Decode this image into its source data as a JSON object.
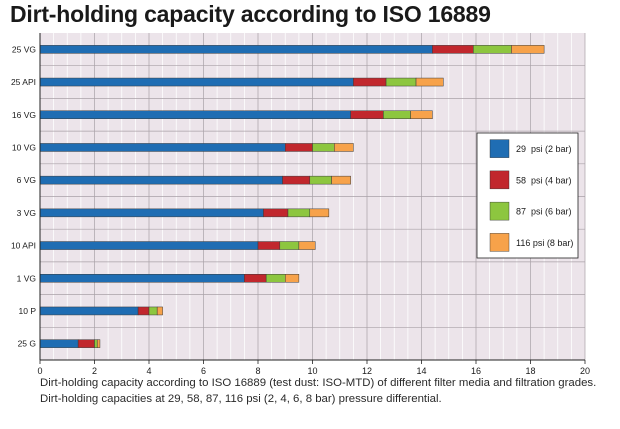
{
  "title": "Dirt-holding capacity according to ISO 16889",
  "caption_line1": "Dirt-holding capacity according to ISO 16889 (test dust: ISO-MTD) of different filter media and filtration grades.",
  "caption_line2": "Dirt-holding capacities at 29, 58, 87, 116 psi (2, 4, 6, 8 bar) pressure differential.",
  "chart_data": {
    "type": "bar",
    "orientation": "horizontal",
    "stacked": true,
    "title": "Dirt-holding capacity according to ISO 16889",
    "xlim": [
      0,
      20
    ],
    "xticks": [
      0,
      2,
      4,
      6,
      8,
      10,
      12,
      14,
      16,
      18,
      20
    ],
    "grid": true,
    "legend_position": "right",
    "categories": [
      "25 VG",
      "25 API",
      "16 VG",
      "10 VG",
      "6 VG",
      "3 VG",
      "10 API",
      "1 VG",
      "10 P",
      "25 G"
    ],
    "series": [
      {
        "name": "29  psi (2 bar)",
        "color": "#1f6db3",
        "values": [
          14.4,
          11.5,
          11.4,
          9.0,
          8.9,
          8.2,
          8.0,
          7.5,
          3.6,
          1.4
        ]
      },
      {
        "name": "58  psi (4 bar)",
        "color": "#c1272d",
        "values": [
          1.5,
          1.2,
          1.2,
          1.0,
          1.0,
          0.9,
          0.8,
          0.8,
          0.4,
          0.6
        ]
      },
      {
        "name": "87  psi (6 bar)",
        "color": "#8dc63f",
        "values": [
          1.4,
          1.1,
          1.0,
          0.8,
          0.8,
          0.8,
          0.7,
          0.7,
          0.3,
          0.1
        ]
      },
      {
        "name": "116 psi (8 bar)",
        "color": "#f7a24a",
        "values": [
          1.2,
          1.0,
          0.8,
          0.7,
          0.7,
          0.7,
          0.6,
          0.5,
          0.2,
          0.1
        ]
      }
    ]
  }
}
